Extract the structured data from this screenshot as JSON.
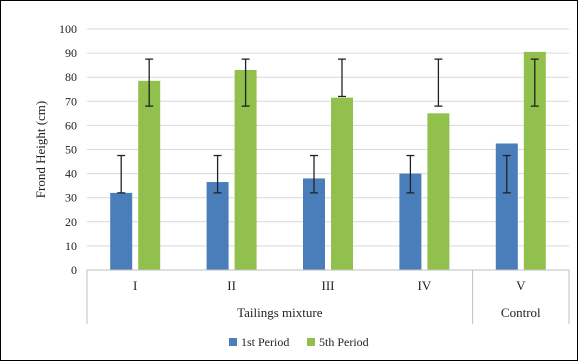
{
  "colors": {
    "series1": "#4a7ebb",
    "series2": "#92c04c",
    "grid": "#d9d9d9",
    "errorbar": "#222222"
  },
  "chart_data": {
    "type": "bar",
    "ylabel": "Frond Height (cm)",
    "ylim": [
      0,
      100
    ],
    "y_ticks": [
      0,
      10,
      20,
      30,
      40,
      50,
      60,
      70,
      80,
      90,
      100
    ],
    "grid": "horizontal",
    "legend_position": "bottom",
    "categories": [
      "I",
      "II",
      "III",
      "IV",
      "V"
    ],
    "groups": [
      {
        "label": "Tailings mixture",
        "categories": [
          "I",
          "II",
          "III",
          "IV"
        ]
      },
      {
        "label": "Control",
        "categories": [
          "V"
        ]
      }
    ],
    "series": [
      {
        "name": "1st Period",
        "values": [
          32,
          36.5,
          38,
          40,
          52.5
        ],
        "error_low": [
          32,
          32,
          32,
          32,
          32
        ],
        "error_high": [
          47.5,
          47.5,
          47.5,
          47.5,
          47.5
        ]
      },
      {
        "name": "5th Period",
        "values": [
          78.5,
          83,
          71.5,
          65,
          90.5
        ],
        "error_low": [
          68,
          68,
          72,
          68,
          68
        ],
        "error_high": [
          87.5,
          87.5,
          87.5,
          87.5,
          87.5
        ]
      }
    ]
  }
}
